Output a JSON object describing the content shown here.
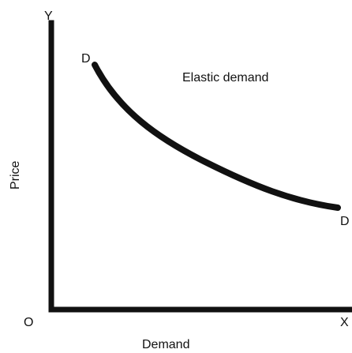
{
  "diagram": {
    "axis_y_label": "Y",
    "axis_x_label": "X",
    "origin_label": "O",
    "y_axis_title": "Price",
    "x_axis_title": "Demand",
    "curve_start_label": "D",
    "curve_end_label": "D",
    "annotation": "Elastic demand"
  },
  "colors": {
    "ink": "#111111",
    "background": "#ffffff"
  }
}
